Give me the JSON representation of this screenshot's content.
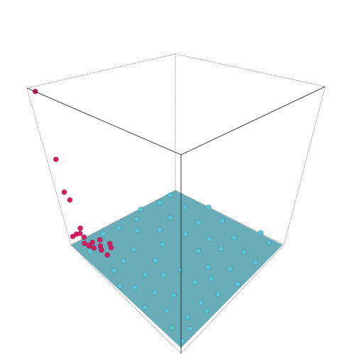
{
  "chart_data": {
    "type": "scatter3d",
    "xlim": [
      0,
      1
    ],
    "ylim": [
      0,
      1
    ],
    "zlim": [
      0,
      1
    ],
    "series": [
      {
        "color": "#5cc6d6",
        "x": [
          0.08,
          0.21,
          0.35,
          0.47,
          0.62,
          0.74,
          0.88,
          0.96,
          0.12,
          0.28,
          0.41,
          0.55,
          0.69,
          0.81,
          0.93,
          0.05,
          0.18,
          0.33,
          0.5,
          0.66,
          0.79,
          0.91,
          0.99,
          0.1,
          0.25,
          0.39,
          0.58,
          0.71,
          0.85,
          0.97,
          0.15,
          0.3,
          0.44,
          0.6,
          0.76,
          0.9,
          0.02,
          0.2,
          0.37,
          0.53,
          0.68,
          0.83,
          0.95,
          0.07,
          0.23,
          0.42,
          0.57,
          0.73,
          0.87,
          0.98
        ],
        "y": [
          0.03,
          0.06,
          0.02,
          0.1,
          0.08,
          0.05,
          0.12,
          0.15,
          0.2,
          0.22,
          0.25,
          0.18,
          0.28,
          0.3,
          0.33,
          0.35,
          0.38,
          0.41,
          0.36,
          0.45,
          0.48,
          0.5,
          0.44,
          0.52,
          0.55,
          0.58,
          0.6,
          0.57,
          0.62,
          0.65,
          0.68,
          0.7,
          0.72,
          0.75,
          0.71,
          0.78,
          0.8,
          0.82,
          0.85,
          0.83,
          0.88,
          0.9,
          0.87,
          0.92,
          0.95,
          0.97,
          0.93,
          0.98,
          0.96,
          0.99
        ],
        "z": [
          0.01,
          0.02,
          0.01,
          0.03,
          0.02,
          0.01,
          0.02,
          0.04,
          0.01,
          0.02,
          0.01,
          0.03,
          0.02,
          0.01,
          0.02,
          0.04,
          0.01,
          0.02,
          0.01,
          0.03,
          0.02,
          0.01,
          0.02,
          0.04,
          0.01,
          0.02,
          0.01,
          0.03,
          0.02,
          0.01,
          0.02,
          0.04,
          0.01,
          0.02,
          0.01,
          0.03,
          0.02,
          0.01,
          0.02,
          0.04,
          0.01,
          0.02,
          0.01,
          0.03,
          0.02,
          0.01,
          0.02,
          0.04,
          0.01,
          0.02
        ]
      },
      {
        "color": "#d81b60",
        "x": [
          0.97,
          0.96,
          0.97,
          0.95,
          0.93,
          0.98,
          0.94,
          0.92,
          0.9,
          0.96,
          0.88,
          0.85,
          0.91,
          0.87,
          0.82,
          0.95,
          0.8,
          0.86,
          0.78,
          0.93
        ],
        "y": [
          0.02,
          0.03,
          0.04,
          0.05,
          0.06,
          0.02,
          0.08,
          0.1,
          0.12,
          0.04,
          0.09,
          0.13,
          0.05,
          0.16,
          0.1,
          0.07,
          0.18,
          0.2,
          0.15,
          0.11
        ],
        "z": [
          0.98,
          0.55,
          0.35,
          0.3,
          0.12,
          0.06,
          0.04,
          0.03,
          0.02,
          0.08,
          0.03,
          0.02,
          0.05,
          0.02,
          0.03,
          0.1,
          0.02,
          0.01,
          0.02,
          0.04
        ]
      }
    ]
  }
}
